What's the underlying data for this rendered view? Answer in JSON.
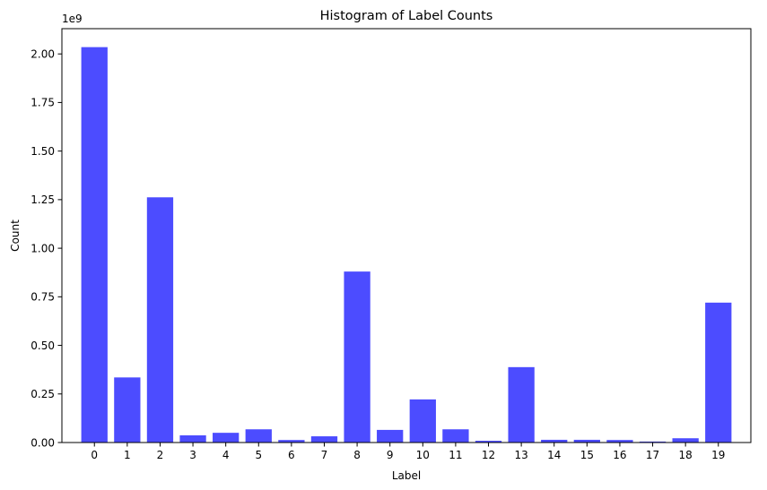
{
  "chart_data": {
    "type": "bar",
    "title": "Histogram of Label Counts",
    "xlabel": "Label",
    "ylabel": "Count",
    "y_offset_label": "1e9",
    "y_multiplier": 1000000000,
    "categories": [
      "0",
      "1",
      "2",
      "3",
      "4",
      "5",
      "6",
      "7",
      "8",
      "9",
      "10",
      "11",
      "12",
      "13",
      "14",
      "15",
      "16",
      "17",
      "18",
      "19"
    ],
    "values": [
      2.035,
      0.335,
      1.262,
      0.037,
      0.05,
      0.068,
      0.013,
      0.032,
      0.88,
      0.065,
      0.222,
      0.068,
      0.009,
      0.388,
      0.014,
      0.014,
      0.013,
      0.005,
      0.022,
      0.72
    ],
    "value_units": "1e9",
    "ylim": [
      0,
      2.13
    ],
    "yticks": [
      0.0,
      0.25,
      0.5,
      0.75,
      1.0,
      1.25,
      1.5,
      1.75,
      2.0
    ],
    "ytick_labels": [
      "0.00",
      "0.25",
      "0.50",
      "0.75",
      "1.00",
      "1.25",
      "1.50",
      "1.75",
      "2.00"
    ],
    "bar_color": "#4949ff",
    "bar_opacity": 0.7,
    "grid": false,
    "legend": "none"
  }
}
